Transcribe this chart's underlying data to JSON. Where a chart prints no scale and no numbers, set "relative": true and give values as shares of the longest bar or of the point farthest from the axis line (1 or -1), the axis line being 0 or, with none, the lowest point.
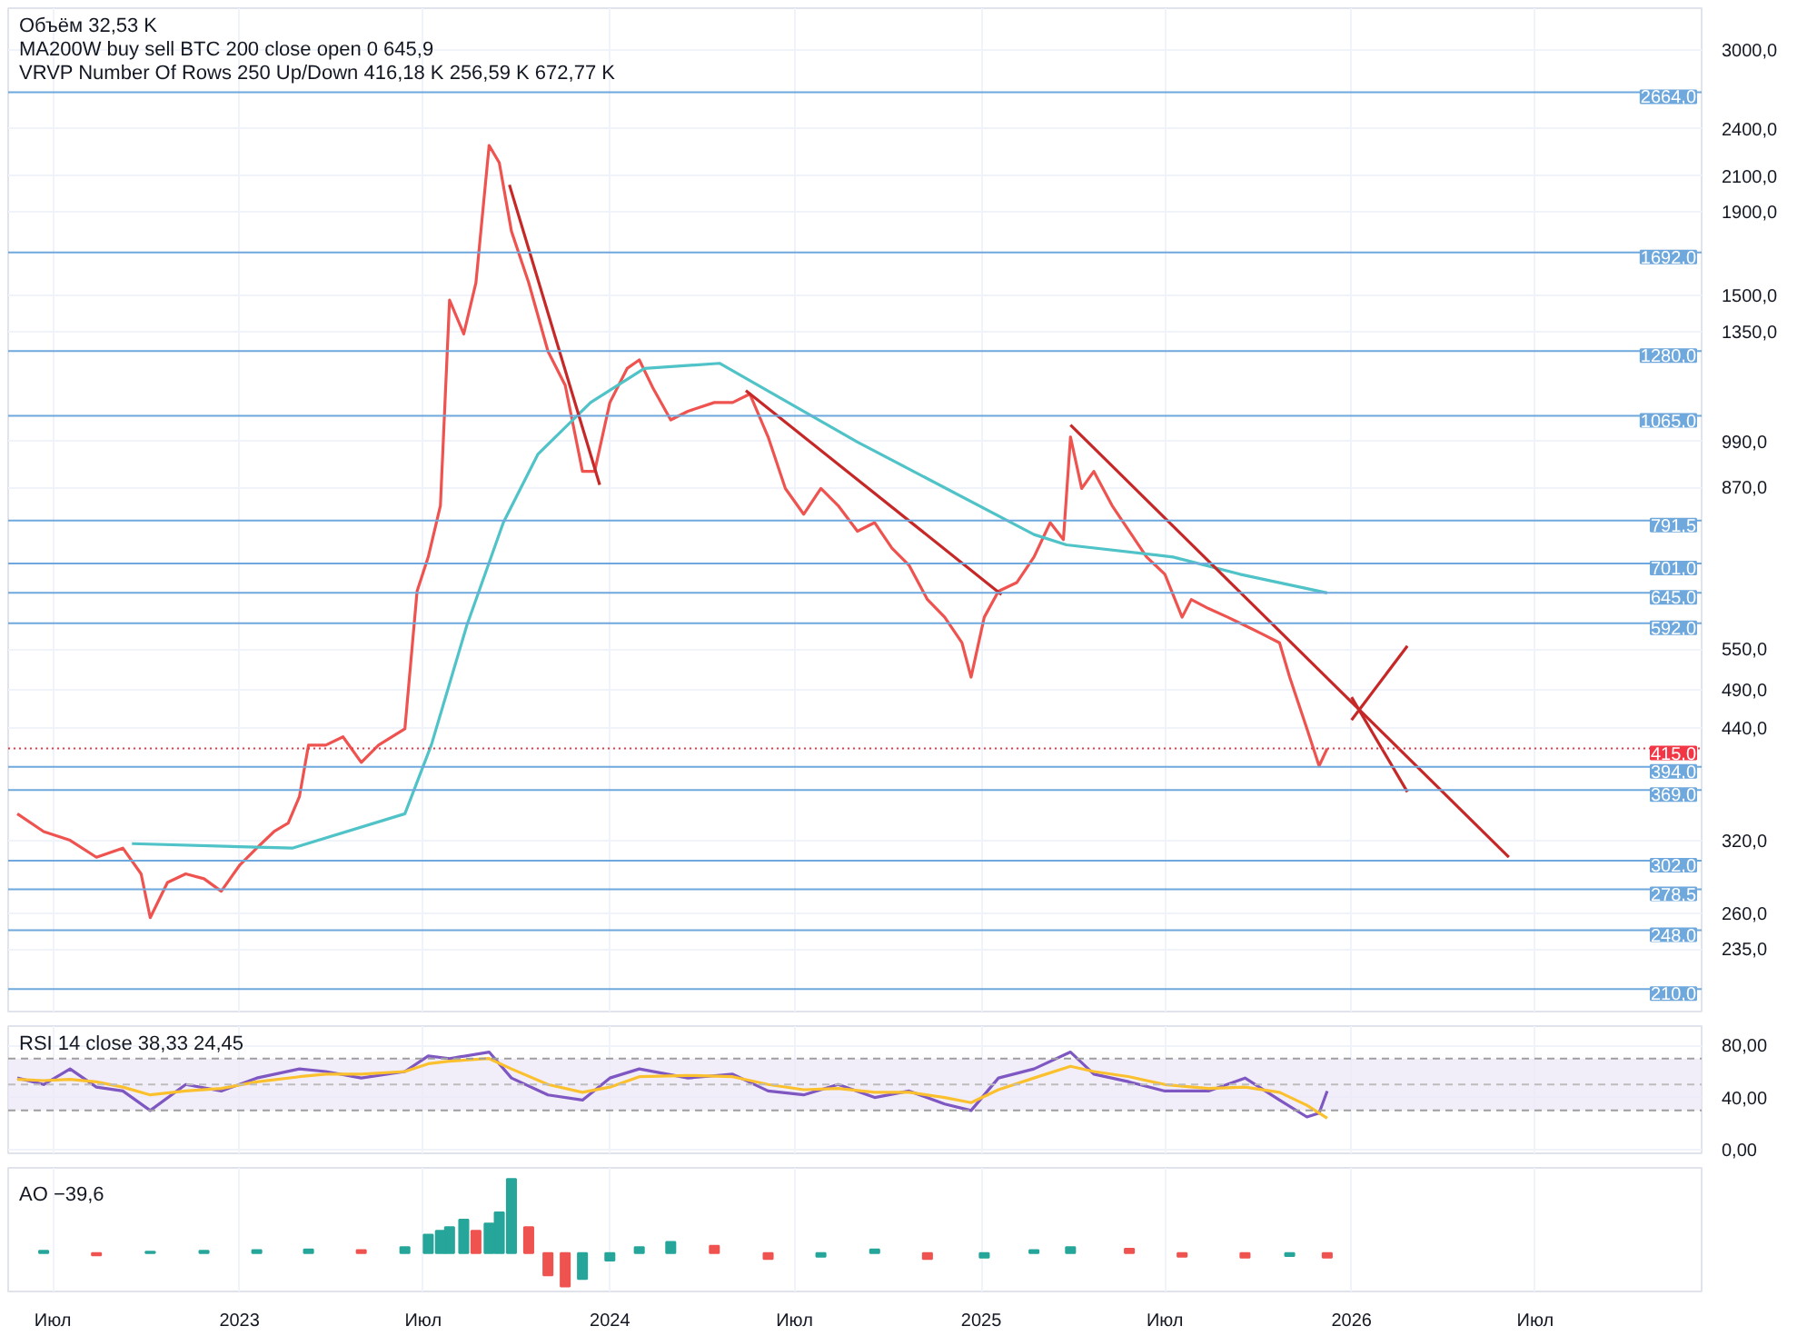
{
  "chart_data": [
    {
      "type": "line",
      "log": true,
      "grid": true,
      "tick_labels": "y",
      "xlim": [
        "2022-05-18",
        "2026-12-12"
      ],
      "ylim": [
        197,
        3380
      ],
      "yticks": [
        {
          "value": 3000,
          "label": "3000,0"
        },
        {
          "value": 2400,
          "label": "2400,0"
        },
        {
          "value": 2100,
          "label": "2100,0"
        },
        {
          "value": 1900,
          "label": "1900,0"
        },
        {
          "value": 1500,
          "label": "1500,0"
        },
        {
          "value": 1350,
          "label": "1350,0"
        },
        {
          "value": 990,
          "label": "990,0"
        },
        {
          "value": 870,
          "label": "870,0"
        },
        {
          "value": 550,
          "label": "550,0"
        },
        {
          "value": 490,
          "label": "490,0"
        },
        {
          "value": 440,
          "label": "440,0"
        },
        {
          "value": 320,
          "label": "320,0"
        },
        {
          "value": 260,
          "label": "260,0"
        },
        {
          "value": 235,
          "label": "235,0"
        }
      ],
      "annotations": [
        "Объём 32,53 K",
        "MA200W buy sell BTC 200 close open 0 645,9",
        "VRVP Number Of Rows 250 Up/Down 416,18 K 256,59 K 672,77 K"
      ],
      "series": [
        {
          "color": "#ef5350",
          "x": [
            "2022-05-27",
            "2022-06-22",
            "2022-07-18",
            "2022-08-13",
            "2022-09-08",
            "2022-09-26",
            "2022-10-05",
            "2022-10-22",
            "2022-11-09",
            "2022-11-27",
            "2022-12-14",
            "2023-01-01",
            "2023-01-18",
            "2023-02-04",
            "2023-02-18",
            "2023-03-01",
            "2023-03-10",
            "2023-03-27",
            "2023-04-13",
            "2023-05-01",
            "2023-05-18",
            "2023-06-13",
            "2023-06-25",
            "2023-07-06",
            "2023-07-18",
            "2023-07-27",
            "2023-08-10",
            "2023-08-22",
            "2023-09-04",
            "2023-09-14",
            "2023-09-26",
            "2023-10-13",
            "2023-11-01",
            "2023-11-18",
            "2023-12-05",
            "2023-12-17",
            "2024-01-01",
            "2024-01-18",
            "2024-01-30",
            "2024-02-13",
            "2024-03-01",
            "2024-03-18",
            "2024-04-13",
            "2024-05-01",
            "2024-05-18",
            "2024-06-05",
            "2024-06-22",
            "2024-07-10",
            "2024-07-27",
            "2024-08-13",
            "2024-09-01",
            "2024-09-18",
            "2024-10-05",
            "2024-10-22",
            "2024-11-09",
            "2024-11-26",
            "2024-12-13",
            "2024-12-22",
            "2025-01-04",
            "2025-01-18",
            "2025-02-05",
            "2025-02-22",
            "2025-03-10",
            "2025-03-23",
            "2025-03-30",
            "2025-04-10",
            "2025-04-22",
            "2025-05-10",
            "2025-05-27",
            "2025-06-13",
            "2025-07-01",
            "2025-07-18",
            "2025-07-27",
            "2025-08-13",
            "2025-09-01",
            "2025-09-18",
            "2025-10-05",
            "2025-10-22",
            "2025-11-01",
            "2025-11-18",
            "2025-11-30",
            "2025-12-08"
          ],
          "values": [
            345,
            328,
            320,
            305,
            313,
            291,
            257,
            284,
            291,
            287,
            277,
            298,
            313,
            328,
            336,
            362,
            419,
            419,
            429,
            399,
            419,
            439,
            648,
            714,
            826,
            1479,
            1343,
            1553,
            2291,
            2182,
            1797,
            1553,
            1279,
            1161,
            910,
            910,
            1106,
            1218,
            1248,
            1149,
            1053,
            1079,
            1106,
            1106,
            1133,
            1003,
            867,
            806,
            867,
            826,
            768,
            787,
            732,
            697,
            633,
            602,
            560,
            508,
            602,
            648,
            664,
            714,
            787,
            750,
            1003,
            867,
            910,
            826,
            768,
            714,
            680,
            602,
            633,
            617,
            602,
            588,
            574,
            560,
            508,
            439,
            395,
            415
          ]
        },
        {
          "color": "#4fc3c7",
          "x": [
            "2022-09-17",
            "2023-02-22",
            "2023-06-13",
            "2023-07-09",
            "2023-08-13",
            "2023-09-18",
            "2023-10-22",
            "2023-12-13",
            "2024-02-04",
            "2024-04-18",
            "2024-09-01",
            "2025-02-22",
            "2025-03-26",
            "2025-07-09",
            "2025-09-13",
            "2025-12-08"
          ],
          "values": [
            317,
            313,
            345,
            419,
            588,
            787,
            955,
            1106,
            1218,
            1236,
            989,
            761,
            739,
            714,
            680,
            645
          ]
        },
        {
          "color": "#c62828",
          "x": [
            "2023-09-24",
            "2023-12-22"
          ],
          "values": [
            2049,
            876
          ]
        },
        {
          "color": "#c62828",
          "x": [
            "2024-05-14",
            "2025-01-21"
          ],
          "values": [
            1144,
            642
          ]
        },
        {
          "color": "#c62828",
          "x": [
            "2025-03-30",
            "2026-06-05"
          ],
          "values": [
            1038,
            305
          ]
        },
        {
          "color": "#c62828",
          "x": [
            "2026-01-01",
            "2026-02-25"
          ],
          "values": [
            480,
            367
          ]
        },
        {
          "color": "#c62828",
          "x": [
            "2026-01-01",
            "2026-02-25"
          ],
          "values": [
            450,
            555
          ]
        }
      ],
      "ref_lines": [
        {
          "axis": "y",
          "value": 2664,
          "label": "2664,0",
          "color": "#6fa8dc",
          "line_style": "solid"
        },
        {
          "axis": "y",
          "value": 1692,
          "label": "1692,0",
          "color": "#6fa8dc",
          "line_style": "solid"
        },
        {
          "axis": "y",
          "value": 1280,
          "label": "1280,0",
          "color": "#6fa8dc",
          "line_style": "solid"
        },
        {
          "axis": "y",
          "value": 1065,
          "label": "1065,0",
          "color": "#6fa8dc",
          "line_style": "solid"
        },
        {
          "axis": "y",
          "value": 791.5,
          "label": "791,5",
          "color": "#6fa8dc",
          "line_style": "solid"
        },
        {
          "axis": "y",
          "value": 701,
          "label": "701,0",
          "color": "#6fa8dc",
          "line_style": "solid"
        },
        {
          "axis": "y",
          "value": 645,
          "label": "645,0",
          "color": "#6fa8dc",
          "line_style": "solid"
        },
        {
          "axis": "y",
          "value": 592,
          "label": "592,0",
          "color": "#6fa8dc",
          "line_style": "solid"
        },
        {
          "axis": "y",
          "value": 415,
          "label": "415,0",
          "color": "#f23645",
          "line_style": "dotted"
        },
        {
          "axis": "y",
          "value": 394,
          "label": "394,0",
          "color": "#6fa8dc",
          "line_style": "solid"
        },
        {
          "axis": "y",
          "value": 369,
          "label": "369,0",
          "color": "#6fa8dc",
          "line_style": "solid"
        },
        {
          "axis": "y",
          "value": 302,
          "label": "302,0",
          "color": "#6fa8dc",
          "line_style": "solid"
        },
        {
          "axis": "y",
          "value": 278.5,
          "label": "278,5",
          "color": "#6fa8dc",
          "line_style": "solid"
        },
        {
          "axis": "y",
          "value": 248,
          "label": "248,0",
          "color": "#6fa8dc",
          "line_style": "solid"
        },
        {
          "axis": "y",
          "value": 210,
          "label": "210,0",
          "color": "#6fa8dc",
          "line_style": "solid"
        }
      ]
    },
    {
      "type": "line",
      "grid": true,
      "tick_labels": "y",
      "xlim": [
        "2022-05-18",
        "2026-12-12"
      ],
      "ylim": [
        -3,
        95
      ],
      "yticks": [
        {
          "value": 0,
          "label": "0,00"
        },
        {
          "value": 40,
          "label": "40,00"
        },
        {
          "value": 80,
          "label": "80,00"
        }
      ],
      "annotations": [
        "RSI 14 close 38,33 24,45"
      ],
      "bands": [
        {
          "axis": "y",
          "from": 30,
          "to": 70,
          "color": "#ede7f6"
        }
      ],
      "ref_lines": [
        {
          "axis": "y",
          "value": 70,
          "color": "#9e9e9e",
          "line_style": "dashed"
        },
        {
          "axis": "y",
          "value": 50,
          "color": "#bdbdbd",
          "line_style": "dashed"
        },
        {
          "axis": "y",
          "value": 30,
          "color": "#9e9e9e",
          "line_style": "dashed"
        }
      ],
      "x": [
        "2022-05-27",
        "2022-06-22",
        "2022-07-18",
        "2022-08-13",
        "2022-09-08",
        "2022-10-05",
        "2022-11-09",
        "2022-12-14",
        "2023-01-18",
        "2023-03-01",
        "2023-03-27",
        "2023-05-01",
        "2023-06-13",
        "2023-07-06",
        "2023-07-27",
        "2023-09-04",
        "2023-09-26",
        "2023-11-01",
        "2023-12-05",
        "2024-01-01",
        "2024-01-30",
        "2024-03-18",
        "2024-05-01",
        "2024-06-05",
        "2024-07-10",
        "2024-08-13",
        "2024-09-18",
        "2024-10-22",
        "2024-11-26",
        "2024-12-22",
        "2025-01-18",
        "2025-02-22",
        "2025-03-30",
        "2025-04-22",
        "2025-05-27",
        "2025-07-01",
        "2025-08-13",
        "2025-09-18",
        "2025-10-22",
        "2025-11-18",
        "2025-11-30",
        "2025-12-08"
      ],
      "series": [
        {
          "color": "#7e57c2",
          "values": [
            55,
            50,
            62,
            48,
            45,
            30,
            50,
            45,
            55,
            62,
            60,
            55,
            60,
            72,
            70,
            75,
            55,
            42,
            38,
            55,
            62,
            55,
            58,
            45,
            42,
            50,
            40,
            45,
            35,
            30,
            55,
            62,
            75,
            58,
            52,
            45,
            45,
            55,
            38,
            25,
            28,
            45
          ]
        },
        {
          "color": "#fbc02d",
          "values": [
            54,
            53,
            54,
            52,
            48,
            42,
            45,
            47,
            52,
            56,
            58,
            58,
            60,
            66,
            68,
            70,
            62,
            50,
            44,
            48,
            56,
            57,
            56,
            50,
            46,
            47,
            44,
            44,
            40,
            36,
            46,
            55,
            64,
            60,
            56,
            50,
            47,
            48,
            44,
            34,
            28,
            24
          ]
        }
      ]
    },
    {
      "type": "bar",
      "relative": true,
      "grid": true,
      "tick_labels": "x",
      "xlim": [
        "2022-05-18",
        "2026-12-12"
      ],
      "xticks": [
        {
          "value": "2022-07-01",
          "label": "Июл"
        },
        {
          "value": "2023-01-01",
          "label": "2023"
        },
        {
          "value": "2023-07-01",
          "label": "Июл"
        },
        {
          "value": "2024-01-01",
          "label": "2024"
        },
        {
          "value": "2024-07-01",
          "label": "Июл"
        },
        {
          "value": "2025-01-01",
          "label": "2025"
        },
        {
          "value": "2025-07-01",
          "label": "Июл"
        },
        {
          "value": "2026-01-01",
          "label": "2026"
        },
        {
          "value": "2026-07-01",
          "label": "Июл"
        }
      ],
      "annotations": [
        "AO −39,6"
      ],
      "x": [
        "2022-06-22",
        "2022-08-13",
        "2022-10-05",
        "2022-11-27",
        "2023-01-18",
        "2023-03-10",
        "2023-05-01",
        "2023-06-13",
        "2023-07-06",
        "2023-07-18",
        "2023-07-27",
        "2023-08-10",
        "2023-08-22",
        "2023-09-04",
        "2023-09-14",
        "2023-09-26",
        "2023-10-13",
        "2023-11-01",
        "2023-11-18",
        "2023-12-05",
        "2024-01-01",
        "2024-01-30",
        "2024-03-01",
        "2024-04-13",
        "2024-06-05",
        "2024-07-27",
        "2024-09-18",
        "2024-11-09",
        "2025-01-04",
        "2025-02-22",
        "2025-03-30",
        "2025-05-27",
        "2025-07-18",
        "2025-09-18",
        "2025-11-01",
        "2025-12-08"
      ],
      "values": [
        0.03,
        -0.03,
        0.02,
        0.03,
        0.04,
        0.05,
        0.04,
        0.08,
        0.25,
        0.3,
        0.35,
        0.45,
        0.3,
        0.4,
        0.55,
        1.0,
        0.35,
        -0.3,
        -0.45,
        -0.35,
        -0.1,
        0.08,
        0.15,
        0.1,
        -0.08,
        -0.05,
        0.05,
        -0.08,
        -0.06,
        0.04,
        0.08,
        0.06,
        -0.05,
        -0.06,
        -0.04,
        -0.06
      ],
      "colors": [
        "#26a69a",
        "#ef5350",
        "#26a69a",
        "#26a69a",
        "#26a69a",
        "#26a69a",
        "#ef5350",
        "#26a69a",
        "#26a69a",
        "#26a69a",
        "#26a69a",
        "#26a69a",
        "#ef5350",
        "#26a69a",
        "#26a69a",
        "#26a69a",
        "#ef5350",
        "#ef5350",
        "#ef5350",
        "#26a69a",
        "#26a69a",
        "#26a69a",
        "#26a69a",
        "#ef5350",
        "#ef5350",
        "#26a69a",
        "#26a69a",
        "#ef5350",
        "#26a69a",
        "#26a69a",
        "#26a69a",
        "#ef5350",
        "#ef5350",
        "#ef5350",
        "#26a69a",
        "#ef5350"
      ]
    }
  ]
}
